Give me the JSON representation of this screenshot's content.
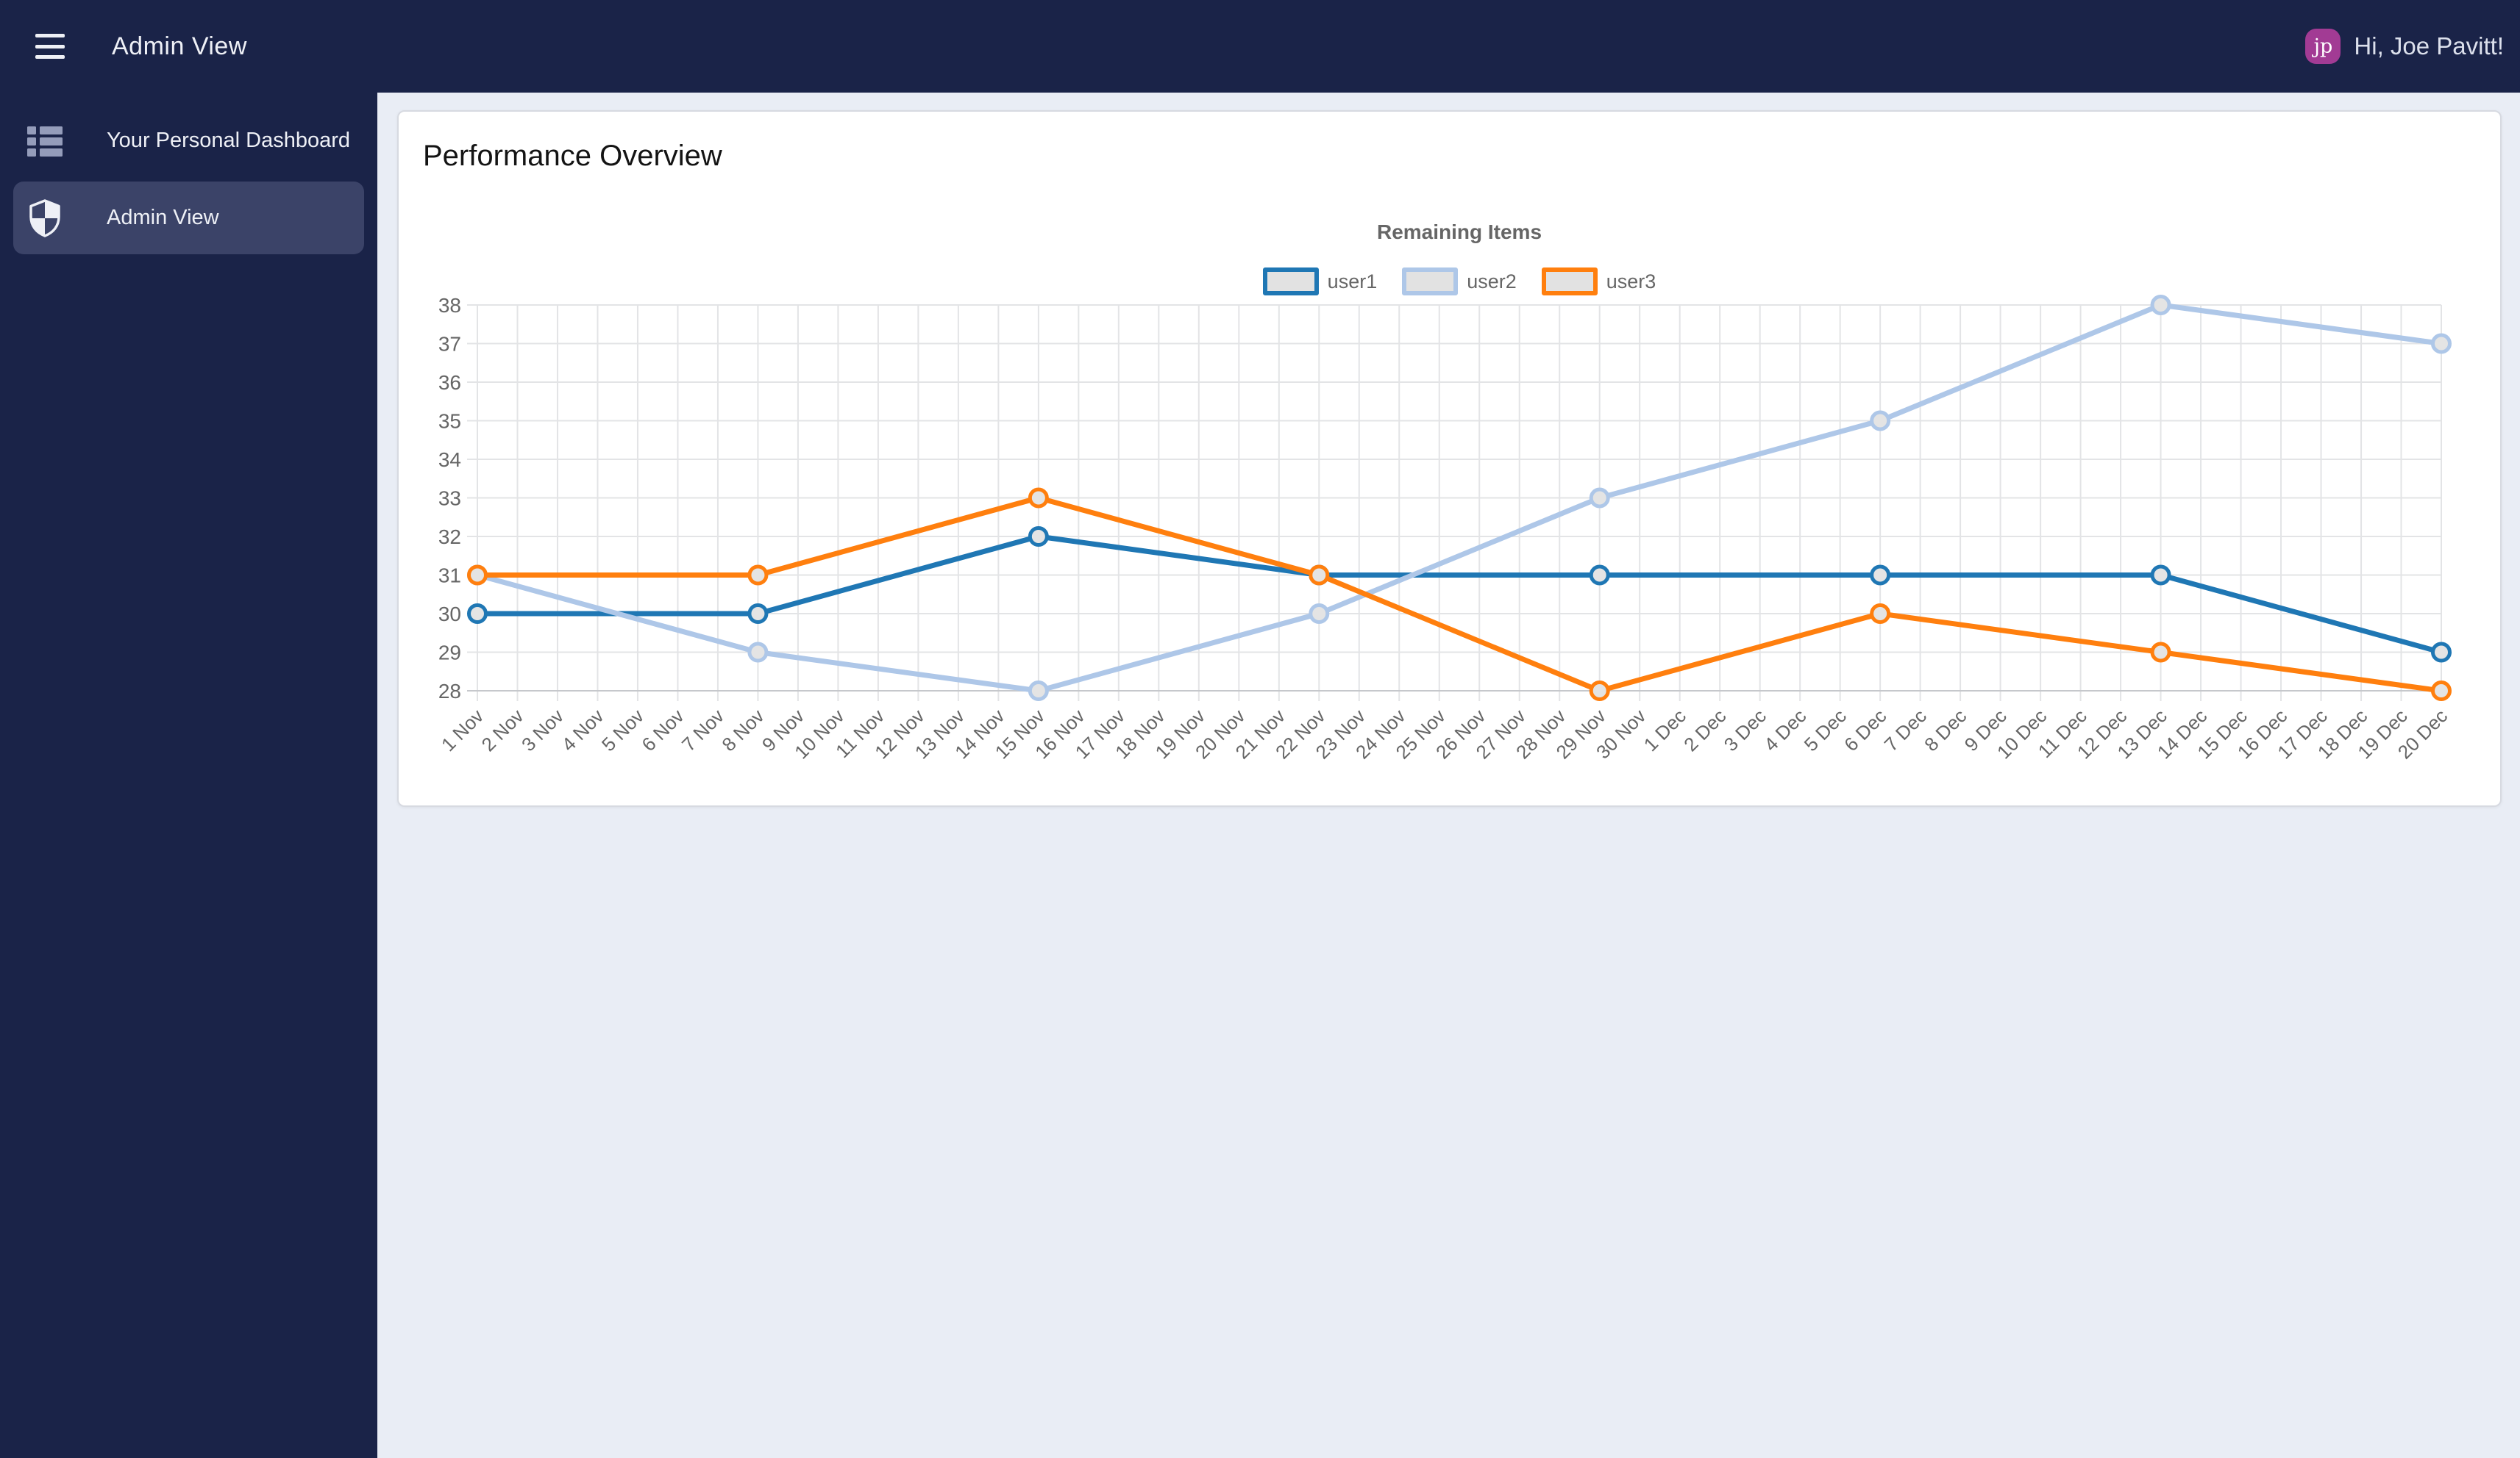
{
  "topbar": {
    "title": "Admin View",
    "greeting": "Hi, Joe Pavitt!",
    "avatar_initials": "jp"
  },
  "sidebar": {
    "items": [
      {
        "label": "Your Personal Dashboard",
        "icon": "list-icon",
        "active": false
      },
      {
        "label": "Admin View",
        "icon": "shield-icon",
        "active": true
      }
    ]
  },
  "main": {
    "heading": "Performance Overview"
  },
  "colors": {
    "topbar_bg": "#1a2348",
    "sidebar_active_bg": "#3b4368",
    "page_bg": "#e9edf5",
    "avatar_bg": "#a23b94",
    "axis_text": "#666666",
    "grid_line": "#e3e4e6",
    "axis_line": "#c6c8cc",
    "marker_fill": "#e4e4e4",
    "legend_swatch_fill": "#e2e2e2"
  },
  "chart_data": {
    "type": "line",
    "title": "Remaining Items",
    "grid": true,
    "legend_position": "top",
    "ylim": [
      28,
      38
    ],
    "y_ticks": [
      38,
      37,
      36,
      35,
      34,
      33,
      32,
      31,
      30,
      29,
      28
    ],
    "x_labels": [
      "1 Nov",
      "2 Nov",
      "3 Nov",
      "4 Nov",
      "5 Nov",
      "6 Nov",
      "7 Nov",
      "8 Nov",
      "9 Nov",
      "10 Nov",
      "11 Nov",
      "12 Nov",
      "13 Nov",
      "14 Nov",
      "15 Nov",
      "16 Nov",
      "17 Nov",
      "18 Nov",
      "19 Nov",
      "20 Nov",
      "21 Nov",
      "22 Nov",
      "23 Nov",
      "24 Nov",
      "25 Nov",
      "26 Nov",
      "27 Nov",
      "28 Nov",
      "29 Nov",
      "30 Nov",
      "1 Dec",
      "2 Dec",
      "3 Dec",
      "4 Dec",
      "5 Dec",
      "6 Dec",
      "7 Dec",
      "8 Dec",
      "9 Dec",
      "10 Dec",
      "11 Dec",
      "12 Dec",
      "13 Dec",
      "14 Dec",
      "15 Dec",
      "16 Dec",
      "17 Dec",
      "18 Dec",
      "19 Dec",
      "20 Dec"
    ],
    "point_dates": [
      "1 Nov",
      "8 Nov",
      "15 Nov",
      "22 Nov",
      "29 Nov",
      "6 Dec",
      "13 Dec",
      "20 Dec"
    ],
    "point_day_indices": [
      0,
      7,
      14,
      21,
      28,
      35,
      42,
      49
    ],
    "series": [
      {
        "name": "user1",
        "color": "#1f77b4",
        "values": [
          30,
          30,
          32,
          31,
          31,
          31,
          31,
          29
        ]
      },
      {
        "name": "user2",
        "color": "#aec7e8",
        "values": [
          31,
          29,
          28,
          30,
          33,
          35,
          38,
          37
        ]
      },
      {
        "name": "user3",
        "color": "#ff7f0e",
        "values": [
          31,
          31,
          33,
          31,
          28,
          30,
          29,
          28
        ]
      }
    ]
  }
}
